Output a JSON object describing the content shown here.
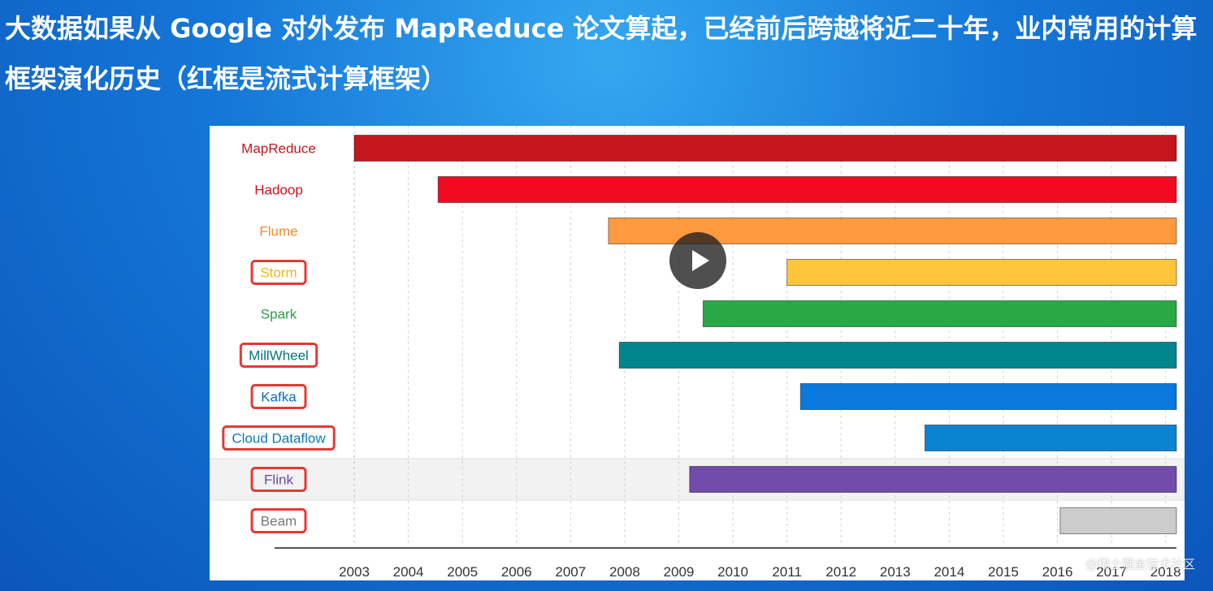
{
  "slide": {
    "title": "大数据如果从 Google 对外发布 MapReduce 论文算起，已经前后跨越将近二十年，业内常用的计算框架演化历史（红框是流式计算框架）",
    "watermark": "@稀土掘金技术社区"
  },
  "player": {
    "play_icon": "play-icon"
  },
  "colors": {
    "highlight_box": "#e53935",
    "grid": "#cfcfcf",
    "axis": "#555555"
  },
  "chart_data": {
    "type": "bar",
    "orientation": "horizontal-timeline",
    "x_ticks": [
      "2003",
      "2004",
      "2005",
      "2006",
      "2007",
      "2008",
      "2009",
      "2010",
      "2011",
      "2012",
      "2013",
      "2014",
      "2015",
      "2016",
      "2017",
      "2018"
    ],
    "xlim": [
      2003,
      2018.2
    ],
    "grid": true,
    "series": [
      {
        "name": "MapReduce",
        "start": 2003.0,
        "end": 2018.2,
        "color": "#c4161c",
        "label_color": "#c4161c",
        "highlighted": false,
        "selected": false
      },
      {
        "name": "Hadoop",
        "start": 2004.55,
        "end": 2018.2,
        "color": "#f20a23",
        "label_color": "#d0101e",
        "highlighted": false,
        "selected": false
      },
      {
        "name": "Flume",
        "start": 2007.7,
        "end": 2018.2,
        "color": "#ff9a40",
        "label_color": "#f08a28",
        "highlighted": false,
        "selected": false
      },
      {
        "name": "Storm",
        "start": 2011.0,
        "end": 2018.2,
        "color": "#ffc53d",
        "label_color": "#f2b419",
        "highlighted": true,
        "selected": false
      },
      {
        "name": "Spark",
        "start": 2009.45,
        "end": 2018.2,
        "color": "#2aa846",
        "label_color": "#2e9b48",
        "highlighted": false,
        "selected": false
      },
      {
        "name": "MillWheel",
        "start": 2007.9,
        "end": 2018.2,
        "color": "#00868c",
        "label_color": "#00767c",
        "highlighted": true,
        "selected": false
      },
      {
        "name": "Kafka",
        "start": 2011.25,
        "end": 2018.2,
        "color": "#0a78dc",
        "label_color": "#0a6fc8",
        "highlighted": true,
        "selected": false
      },
      {
        "name": "Cloud Dataflow",
        "start": 2013.55,
        "end": 2018.2,
        "color": "#0b84d0",
        "label_color": "#0b79bd",
        "highlighted": true,
        "selected": false
      },
      {
        "name": "Flink",
        "start": 2009.2,
        "end": 2018.2,
        "color": "#714caa",
        "label_color": "#6a45a6",
        "highlighted": true,
        "selected": true
      },
      {
        "name": "Beam",
        "start": 2016.05,
        "end": 2018.2,
        "color": "#cccccc",
        "label_color": "#777777",
        "highlighted": true,
        "selected": false
      }
    ]
  }
}
